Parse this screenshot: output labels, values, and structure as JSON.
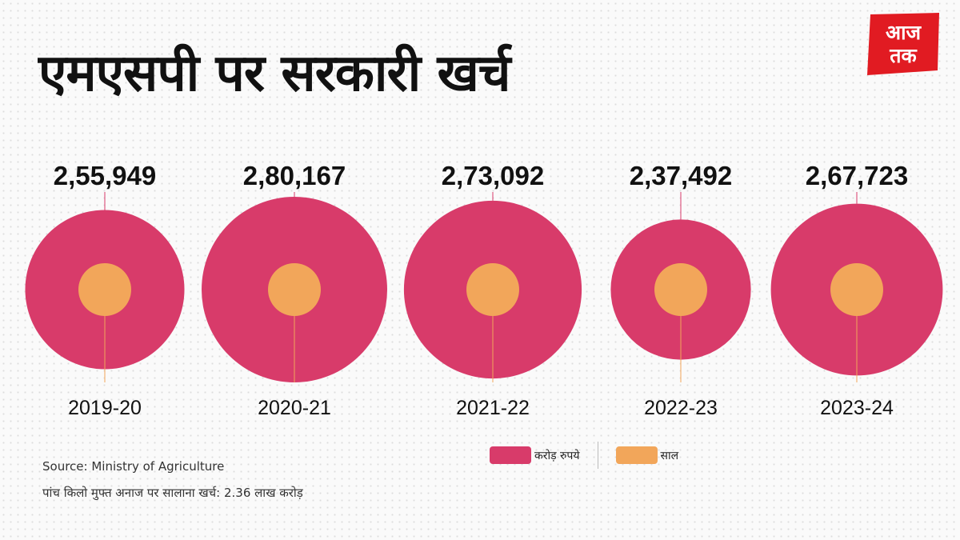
{
  "title": "एमएसपी पर सरकारी खर्च",
  "logo": {
    "text": "आज तक",
    "line1": "आज",
    "line2": "तक"
  },
  "colors": {
    "primary": "#d83b6a",
    "secondary": "#f2a65a",
    "line": "#d83b6a",
    "logo_red": "#e11b22"
  },
  "chart_data": {
    "type": "bubble",
    "x_label": "",
    "y_label": "",
    "categories": [
      "2019-20",
      "2020-21",
      "2021-22",
      "2022-23",
      "2023-24"
    ],
    "values": [
      255949,
      280167,
      273092,
      237492,
      267723
    ],
    "value_labels": [
      "2,55,949",
      "2,80,167",
      "2,73,092",
      "2,37,492",
      "2,67,723"
    ],
    "unit": "करोड़ रुपये",
    "legend": [
      {
        "label": "करोड़ रुपये",
        "color": "#d83b6a"
      },
      {
        "label": "साल",
        "color": "#f2a65a"
      }
    ],
    "legend_position": "bottom-right"
  },
  "source": "Source: Ministry of Agriculture",
  "note": "पांच किलो मुफ्त अनाज पर सालाना खर्च: 2.36 लाख करोड़"
}
